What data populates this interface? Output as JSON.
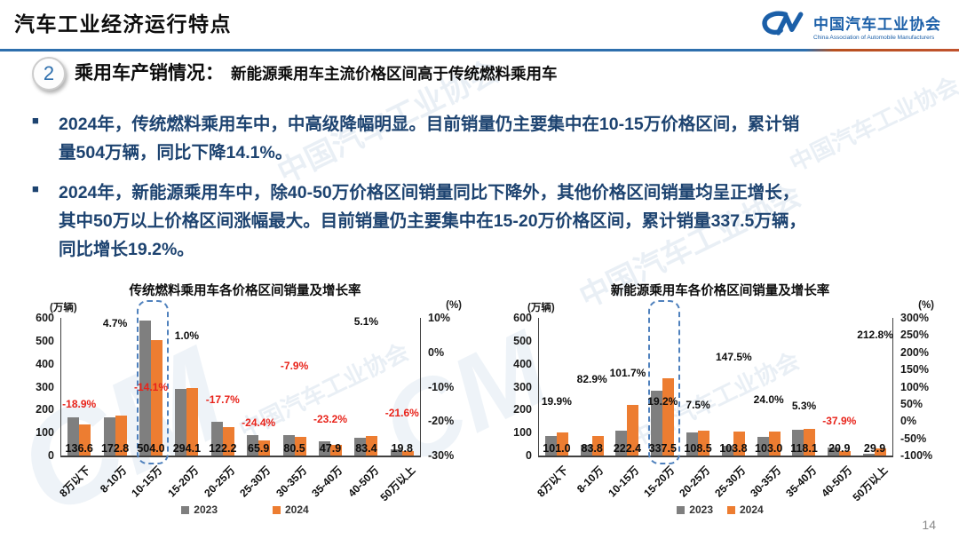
{
  "header": {
    "title": "汽车工业经济运行特点",
    "logo": {
      "monogram": "CM",
      "org_cn": "中国汽车工业协会",
      "org_en": "China Association of Automobile Manufacturers"
    }
  },
  "section": {
    "number": "2",
    "title": "乘用车产销情况：",
    "subtitle": "新能源乘用车主流价格区间高于传统燃料乘用车"
  },
  "bullet_marker": "■",
  "bullets": [
    {
      "lines": [
        "2024年，传统燃料乘用车中，中高级降幅明显。目前销量仍主要集中在10-15万价格区间，累计销",
        "量504万辆，同比下降14.1%。"
      ]
    },
    {
      "lines": [
        "2024年，新能源乘用车中，除40-50万价格区间销量同比下降外，其他价格区间销量均呈正增长，",
        "其中50万以上价格区间涨幅最大。目前销量仍主要集中在15-20万价格区间，累计销量337.5万辆，",
        "同比增长19.2%。"
      ]
    }
  ],
  "colors": {
    "bar_2023": "#7f7f7f",
    "bar_2024": "#ED7D31",
    "negative_red": "#e8231a",
    "positive_black": "#0d0d0d",
    "accent_blue": "#2e6fad",
    "divider_orange": "#c0522d",
    "navy_text": "#1d4370",
    "highlight_border": "#4f81bd",
    "logo_blue": "#1b5fa8"
  },
  "watermark": {
    "text": "中国汽车工业协会",
    "en": "China Association of Automobile Manufacturers",
    "monogram": "CM"
  },
  "page_number": "14",
  "chart_data": [
    {
      "type": "bar",
      "title": "传统燃料乘用车各价格区间销量及增长率",
      "unit_left": "(万辆)",
      "unit_right": "(%)",
      "categories": [
        "8万以下",
        "8-10万",
        "10-15万",
        "15-20万",
        "20-25万",
        "25-30万",
        "30-35万",
        "35-40万",
        "40-50万",
        "50万以上"
      ],
      "series": [
        {
          "name": "2023",
          "color_key": "bar_2023",
          "estimated": true,
          "values": [
            168.4,
            165.0,
            586.7,
            291.2,
            148.5,
            87.2,
            87.4,
            62.4,
            79.4,
            25.3
          ]
        },
        {
          "name": "2024",
          "color_key": "bar_2024",
          "values": [
            136.6,
            172.8,
            504.0,
            294.1,
            122.2,
            65.9,
            80.5,
            47.9,
            83.4,
            19.8
          ]
        }
      ],
      "value_labels_2024": [
        "136.6",
        "172.8",
        "504.0",
        "294.1",
        "122.2",
        "65.9",
        "80.5",
        "47.9",
        "83.4",
        "19.8"
      ],
      "growth_pct": [
        -18.9,
        4.7,
        -14.1,
        1.0,
        -17.7,
        -24.4,
        -7.9,
        -23.2,
        5.1,
        -21.6
      ],
      "growth_labels": [
        "-18.9%",
        "4.7%",
        "-14.1%",
        "1.0%",
        "-17.7%",
        "-24.4%",
        "-7.9%",
        "-23.2%",
        "5.1%",
        "-21.6%"
      ],
      "ylim_left": [
        0,
        600
      ],
      "yticks_left": [
        "600",
        "500",
        "400",
        "300",
        "200",
        "100",
        "0"
      ],
      "ylim_right": [
        -30,
        10
      ],
      "yticks_right": [
        "10%",
        "0%",
        "-10%",
        "-20%",
        "-30%"
      ],
      "highlight_index": 2,
      "legend": [
        "2023",
        "2024"
      ],
      "grid": "off",
      "legend_position": "bottom"
    },
    {
      "type": "bar",
      "title": "新能源乘用车各价格区间销量及增长率",
      "unit_left": "(万辆)",
      "unit_right": "(%)",
      "categories": [
        "8万以下",
        "8-10万",
        "10-15万",
        "15-20万",
        "20-25万",
        "25-30万",
        "30-35万",
        "35-40万",
        "40-50万",
        "50万以上"
      ],
      "series": [
        {
          "name": "2023",
          "color_key": "bar_2023",
          "estimated": true,
          "values": [
            84.2,
            45.8,
            110.3,
            283.1,
            100.9,
            41.9,
            83.1,
            112.2,
            33.7,
            9.6
          ]
        },
        {
          "name": "2024",
          "color_key": "bar_2024",
          "values": [
            101.0,
            83.8,
            222.4,
            337.5,
            108.5,
            103.8,
            103.0,
            118.1,
            20.9,
            29.9
          ]
        }
      ],
      "value_labels_2024": [
        "101.0",
        "83.8",
        "222.4",
        "337.5",
        "108.5",
        "103.8",
        "103.0",
        "118.1",
        "20.9",
        "29.9"
      ],
      "growth_pct": [
        19.9,
        82.9,
        101.7,
        19.2,
        7.5,
        147.5,
        24.0,
        5.3,
        -37.9,
        212.8
      ],
      "growth_labels": [
        "19.9%",
        "82.9%",
        "101.7%",
        "19.2%",
        "7.5%",
        "147.5%",
        "24.0%",
        "5.3%",
        "-37.9%",
        "212.8%"
      ],
      "ylim_left": [
        0,
        600
      ],
      "yticks_left": [
        "600",
        "500",
        "400",
        "300",
        "200",
        "100",
        "0"
      ],
      "ylim_right": [
        -100,
        300
      ],
      "yticks_right": [
        "300%",
        "250%",
        "200%",
        "150%",
        "100%",
        "50%",
        "0%",
        "-50%",
        "-100%"
      ],
      "highlight_index": 3,
      "legend": [
        "2023",
        "2024"
      ],
      "grid": "off",
      "legend_position": "bottom"
    }
  ]
}
